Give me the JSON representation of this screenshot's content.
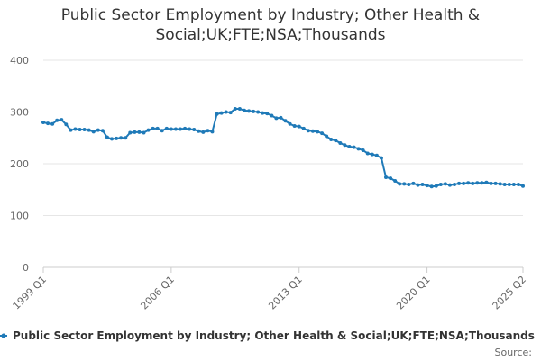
{
  "chart_data": {
    "type": "line",
    "title": "Public Sector Employment by Industry; Other Health & Social;UK;FTE;NSA;Thousands",
    "source": "Source:",
    "categories": [
      "1999 Q1",
      null,
      null,
      null,
      null,
      null,
      null,
      null,
      null,
      null,
      null,
      null,
      null,
      null,
      null,
      null,
      null,
      null,
      null,
      null,
      null,
      null,
      null,
      null,
      null,
      null,
      null,
      null,
      "2006 Q1",
      null,
      null,
      null,
      null,
      null,
      null,
      null,
      null,
      null,
      null,
      null,
      null,
      null,
      null,
      null,
      null,
      null,
      null,
      null,
      null,
      null,
      null,
      null,
      null,
      null,
      null,
      null,
      "2013 Q1",
      null,
      null,
      null,
      null,
      null,
      null,
      null,
      null,
      null,
      null,
      null,
      null,
      null,
      null,
      null,
      null,
      null,
      null,
      null,
      null,
      null,
      null,
      null,
      null,
      null,
      null,
      null,
      "2020 Q1",
      null,
      null,
      null,
      null,
      null,
      null,
      null,
      null,
      null,
      null,
      null,
      null,
      null,
      null,
      null,
      null,
      null,
      null,
      null,
      null,
      "2025 Q2"
    ],
    "series": [
      {
        "name": "Public Sector Employment by Industry; Other Health & Social;UK;FTE;NSA;Thousands",
        "color": "#1f7ab8",
        "values": [
          280,
          278,
          277,
          284,
          285,
          276,
          265,
          267,
          266,
          266,
          265,
          262,
          265,
          264,
          251,
          248,
          249,
          250,
          250,
          260,
          261,
          261,
          260,
          265,
          268,
          268,
          264,
          268,
          267,
          267,
          267,
          268,
          267,
          266,
          263,
          261,
          264,
          262,
          296,
          298,
          300,
          299,
          306,
          306,
          303,
          302,
          301,
          300,
          298,
          297,
          293,
          288,
          289,
          283,
          277,
          273,
          272,
          268,
          264,
          263,
          262,
          259,
          253,
          247,
          245,
          240,
          236,
          233,
          232,
          229,
          226,
          220,
          218,
          216,
          211,
          174,
          172,
          167,
          161,
          161,
          160,
          162,
          159,
          160,
          158,
          156,
          157,
          160,
          161,
          159,
          160,
          162,
          162,
          163,
          162,
          163,
          163,
          164,
          162,
          162,
          161,
          160,
          160,
          160,
          160,
          157
        ]
      }
    ],
    "ylim": [
      0,
      400
    ],
    "yticks": [
      0,
      100,
      200,
      300,
      400
    ],
    "grid": true
  }
}
